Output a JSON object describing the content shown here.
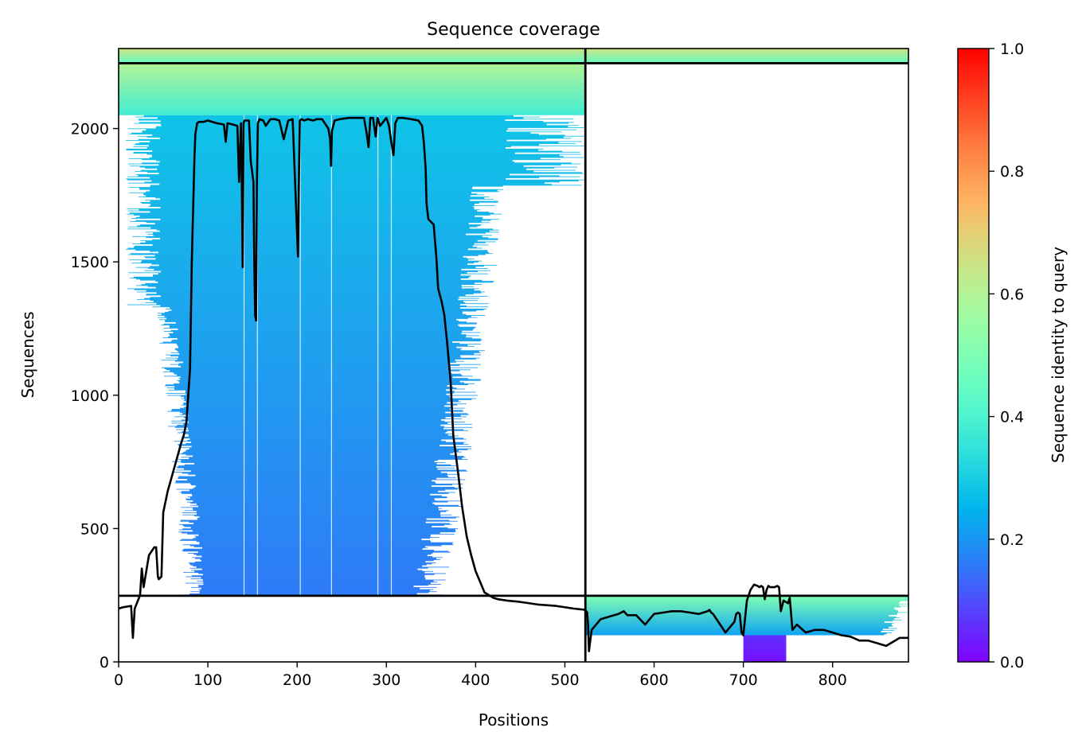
{
  "chart_data": {
    "type": "heatmap",
    "title": "Sequence coverage",
    "xlabel": "Positions",
    "ylabel": "Sequences",
    "xlim": [
      0,
      885
    ],
    "ylim": [
      0,
      2300
    ],
    "xticks": [
      0,
      100,
      200,
      300,
      400,
      500,
      600,
      700,
      800
    ],
    "yticks": [
      0,
      500,
      1000,
      1500,
      2000
    ],
    "colorbar": {
      "label": "Sequence identity to query",
      "range": [
        0,
        1
      ],
      "ticks": [
        "0.0",
        "0.2",
        "0.4",
        "0.6",
        "0.8",
        "1.0"
      ],
      "colormap": "rainbow"
    },
    "chain_boundary_x": 523,
    "block_boundaries_y": [
      248,
      2245
    ],
    "blocks": [
      {
        "x": [
          0,
          523
        ],
        "y": [
          2245,
          2300
        ],
        "identity": [
          0.45,
          0.65
        ]
      },
      {
        "x": [
          0,
          523
        ],
        "y": [
          2050,
          2245
        ],
        "identity": [
          0.38,
          0.6
        ]
      },
      {
        "x": [
          0,
          523
        ],
        "y": [
          248,
          2050
        ],
        "identity": [
          0.16,
          0.28
        ]
      },
      {
        "x": [
          523,
          885
        ],
        "y": [
          2245,
          2300
        ],
        "identity": [
          0.45,
          0.65
        ]
      },
      {
        "x": [
          523,
          885
        ],
        "y": [
          100,
          248
        ],
        "identity": [
          0.22,
          0.5
        ]
      },
      {
        "x": [
          700,
          748
        ],
        "y": [
          0,
          100
        ],
        "identity": [
          0.02,
          0.06
        ]
      }
    ],
    "coverage_line": {
      "x": [
        0,
        5,
        14,
        16,
        18,
        24,
        26,
        28,
        30,
        34,
        40,
        42,
        44,
        45,
        48,
        50,
        55,
        60,
        65,
        70,
        73,
        76,
        80,
        82,
        85,
        86,
        88,
        90,
        95,
        100,
        110,
        118,
        120,
        122,
        128,
        133,
        135,
        137,
        138,
        139,
        140,
        141,
        142,
        143,
        146,
        148,
        151,
        152,
        153,
        154,
        155,
        156,
        158,
        162,
        165,
        170,
        175,
        180,
        185,
        190,
        195,
        200,
        201,
        202,
        203,
        205,
        208,
        212,
        218,
        222,
        228,
        235,
        237,
        238,
        239,
        242,
        248,
        258,
        268,
        272,
        275,
        278,
        280,
        282,
        285,
        288,
        290,
        293,
        300,
        303,
        305,
        308,
        310,
        313,
        318,
        328,
        336,
        340,
        342,
        344,
        345,
        347,
        350,
        353,
        356,
        358,
        362,
        365,
        368,
        372,
        375,
        380,
        385,
        390,
        395,
        400,
        405,
        410,
        420,
        425,
        435,
        450,
        470,
        490,
        510,
        523,
        524,
        525,
        526,
        527,
        530,
        540,
        550,
        560,
        563,
        566,
        570,
        580,
        590,
        600,
        610,
        620,
        630,
        640,
        650,
        660,
        662,
        664,
        666,
        670,
        680,
        690,
        692,
        694,
        696,
        698,
        700,
        704,
        708,
        712,
        716,
        718,
        720,
        722,
        724,
        726,
        728,
        730,
        735,
        738,
        740,
        742,
        745,
        750,
        752,
        755,
        760,
        770,
        780,
        790,
        800,
        810,
        820,
        830,
        840,
        850,
        860,
        870,
        875,
        885
      ],
      "y": [
        200,
        205,
        210,
        90,
        200,
        250,
        350,
        280,
        320,
        400,
        430,
        430,
        320,
        310,
        320,
        560,
        640,
        700,
        760,
        820,
        850,
        900,
        1100,
        1500,
        1900,
        1980,
        2020,
        2025,
        2025,
        2030,
        2020,
        2015,
        1950,
        2020,
        2015,
        2010,
        1800,
        2020,
        1800,
        1480,
        2020,
        2030,
        2030,
        2030,
        2030,
        1880,
        1800,
        1500,
        1300,
        1280,
        1800,
        2020,
        2035,
        2030,
        2010,
        2035,
        2035,
        2030,
        1960,
        2030,
        2035,
        1600,
        1520,
        1800,
        2030,
        2035,
        2030,
        2035,
        2030,
        2035,
        2035,
        2000,
        1960,
        1860,
        1990,
        2030,
        2035,
        2040,
        2040,
        2040,
        2040,
        1980,
        1930,
        2040,
        2040,
        1970,
        2040,
        2010,
        2040,
        2010,
        1960,
        1900,
        2020,
        2040,
        2040,
        2035,
        2030,
        2010,
        1950,
        1850,
        1720,
        1660,
        1650,
        1640,
        1520,
        1400,
        1350,
        1300,
        1200,
        1050,
        850,
        720,
        580,
        470,
        400,
        340,
        300,
        260,
        240,
        235,
        230,
        225,
        215,
        210,
        200,
        195,
        190,
        185,
        140,
        40,
        120,
        160,
        170,
        180,
        185,
        190,
        175,
        175,
        140,
        180,
        185,
        190,
        190,
        185,
        180,
        190,
        195,
        185,
        180,
        160,
        110,
        150,
        180,
        185,
        180,
        110,
        100,
        230,
        270,
        290,
        285,
        280,
        285,
        280,
        235,
        270,
        285,
        280,
        280,
        285,
        280,
        190,
        230,
        220,
        240,
        120,
        140,
        110,
        120,
        120,
        110,
        100,
        95,
        80,
        80,
        70,
        60,
        80,
        90,
        90
      ]
    }
  }
}
